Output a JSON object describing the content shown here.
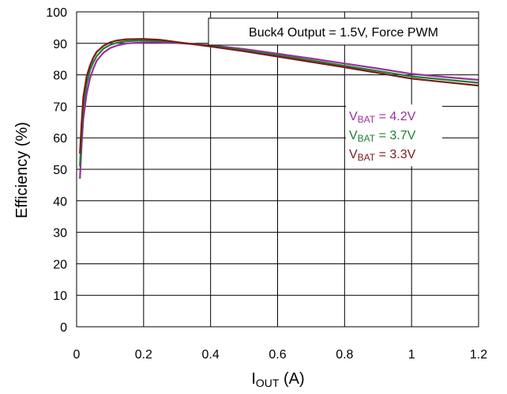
{
  "chart_data": {
    "type": "line",
    "title": "Buck4 Output = 1.5V, Force PWM",
    "xlabel": "I",
    "xlabel_sub": "OUT",
    "xlabel_unit": " (A)",
    "ylabel": "Efficiency (%)",
    "xlim": [
      0,
      1.2
    ],
    "ylim": [
      0,
      100
    ],
    "x_ticks": [
      "0",
      "0.2",
      "0.4",
      "0.6",
      "0.8",
      "1",
      "1.2"
    ],
    "y_ticks": [
      "0",
      "10",
      "20",
      "30",
      "40",
      "50",
      "60",
      "70",
      "80",
      "90",
      "100"
    ],
    "grid": true,
    "legend_position": "right",
    "series": [
      {
        "name": "VBAT = 4.2V",
        "name_parts": {
          "main": "V",
          "sub": "BAT",
          "rest": " = 4.2V"
        },
        "color": "#9B2F9F",
        "points": [
          [
            0.01,
            47
          ],
          [
            0.015,
            58
          ],
          [
            0.02,
            66
          ],
          [
            0.03,
            74
          ],
          [
            0.04,
            79
          ],
          [
            0.05,
            82
          ],
          [
            0.06,
            84.5
          ],
          [
            0.08,
            87
          ],
          [
            0.1,
            88.5
          ],
          [
            0.12,
            89.3
          ],
          [
            0.15,
            90
          ],
          [
            0.2,
            90.3
          ],
          [
            0.25,
            90.3
          ],
          [
            0.3,
            90.1
          ],
          [
            0.4,
            89.4
          ],
          [
            0.5,
            88.2
          ],
          [
            0.6,
            86.7
          ],
          [
            0.7,
            85.2
          ],
          [
            0.8,
            83.6
          ],
          [
            0.9,
            82
          ],
          [
            1.0,
            80.3
          ],
          [
            1.1,
            79.3
          ],
          [
            1.2,
            78.4
          ]
        ]
      },
      {
        "name": "VBAT = 3.7V",
        "name_parts": {
          "main": "V",
          "sub": "BAT",
          "rest": " = 3.7V"
        },
        "color": "#1E7D32",
        "points": [
          [
            0.01,
            51
          ],
          [
            0.015,
            62
          ],
          [
            0.02,
            70
          ],
          [
            0.03,
            77
          ],
          [
            0.04,
            81.5
          ],
          [
            0.05,
            84
          ],
          [
            0.06,
            86
          ],
          [
            0.08,
            88.3
          ],
          [
            0.1,
            89.5
          ],
          [
            0.12,
            90.2
          ],
          [
            0.15,
            90.7
          ],
          [
            0.2,
            90.9
          ],
          [
            0.25,
            90.8
          ],
          [
            0.3,
            90.3
          ],
          [
            0.4,
            89.2
          ],
          [
            0.5,
            87.8
          ],
          [
            0.6,
            86.2
          ],
          [
            0.7,
            84.6
          ],
          [
            0.8,
            82.9
          ],
          [
            0.9,
            81.2
          ],
          [
            1.0,
            79.5
          ],
          [
            1.1,
            78.5
          ],
          [
            1.2,
            77.5
          ]
        ]
      },
      {
        "name": "VBAT = 3.3V",
        "name_parts": {
          "main": "V",
          "sub": "BAT",
          "rest": " = 3.3V"
        },
        "color": "#7B1B1B",
        "points": [
          [
            0.01,
            55
          ],
          [
            0.015,
            65
          ],
          [
            0.02,
            73
          ],
          [
            0.03,
            79.5
          ],
          [
            0.04,
            83
          ],
          [
            0.05,
            85.5
          ],
          [
            0.06,
            87.3
          ],
          [
            0.08,
            89.2
          ],
          [
            0.1,
            90.3
          ],
          [
            0.12,
            90.9
          ],
          [
            0.15,
            91.3
          ],
          [
            0.2,
            91.4
          ],
          [
            0.25,
            91.1
          ],
          [
            0.3,
            90.4
          ],
          [
            0.4,
            89
          ],
          [
            0.5,
            87.5
          ],
          [
            0.6,
            85.8
          ],
          [
            0.7,
            84.1
          ],
          [
            0.8,
            82.4
          ],
          [
            0.9,
            80.6
          ],
          [
            1.0,
            78.8
          ],
          [
            1.1,
            77.7
          ],
          [
            1.2,
            76.6
          ]
        ]
      }
    ]
  }
}
